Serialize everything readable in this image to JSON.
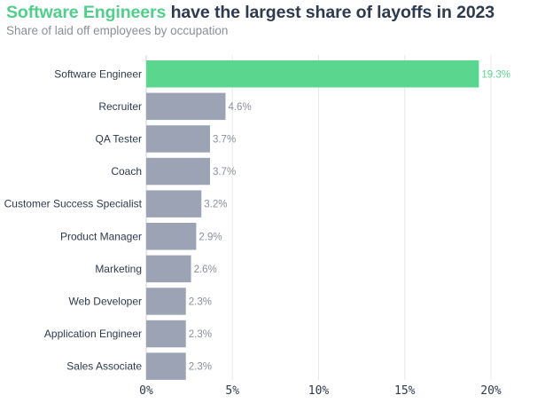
{
  "header": {
    "title_highlight": "Software Engineers",
    "title_rest": " have the largest share of layoffs in 2023",
    "subtitle": "Share of laid off employees by occupation"
  },
  "colors": {
    "highlight": "#5ad68f",
    "bar": "#9ca3b4",
    "grid": "#e6e8ec",
    "label": "#2e3a4f",
    "value": "#8a8f99"
  },
  "chart_data": {
    "type": "bar",
    "orientation": "horizontal",
    "title": "Software Engineers have the largest share of layoffs in 2023",
    "subtitle": "Share of laid off employees by occupation",
    "categories": [
      "Software Engineer",
      "Recruiter",
      "QA Tester",
      "Coach",
      "Customer Success Specialist",
      "Product Manager",
      "Marketing",
      "Web Developer",
      "Application Engineer",
      "Sales Associate"
    ],
    "values": [
      19.3,
      4.6,
      3.7,
      3.7,
      3.2,
      2.9,
      2.6,
      2.3,
      2.3,
      2.3
    ],
    "value_labels": [
      "19.3%",
      "4.6%",
      "3.7%",
      "3.7%",
      "3.2%",
      "2.9%",
      "2.6%",
      "2.3%",
      "2.3%",
      "2.3%"
    ],
    "highlight_index": 0,
    "xlim": [
      0,
      20
    ],
    "xticks": [
      0,
      5,
      10,
      15,
      20
    ],
    "xtick_labels": [
      "0%",
      "5%",
      "10%",
      "15%",
      "20%"
    ],
    "xlabel": "",
    "ylabel": "",
    "grid": true,
    "legend": "none"
  }
}
